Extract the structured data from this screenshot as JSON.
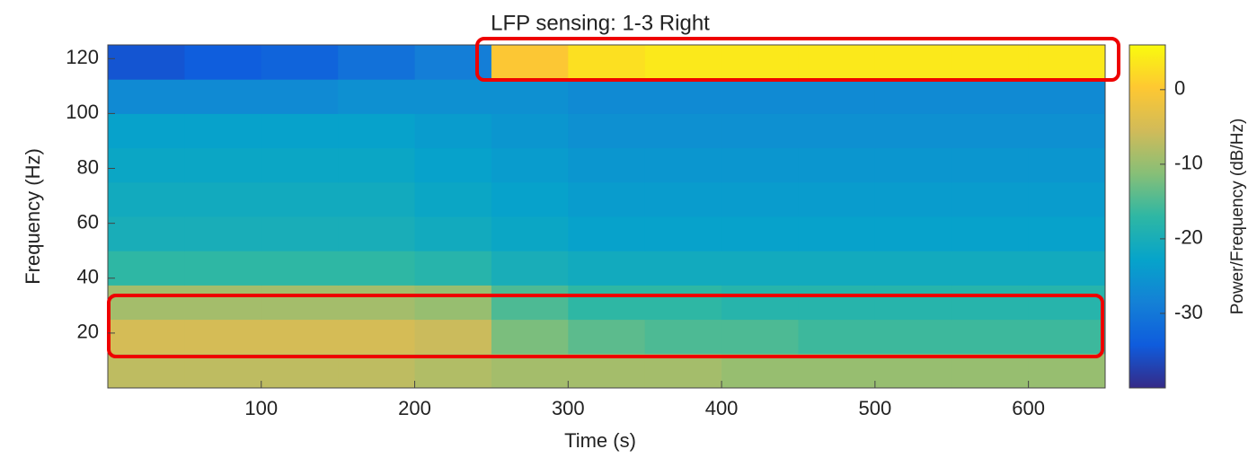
{
  "chart_data": {
    "type": "heatmap",
    "title": "LFP sensing: 1-3 Right",
    "x_label": "Time (s)",
    "y_label": "Frequency (Hz)",
    "colorbar_label": "Power/Frequency (dB/Hz)",
    "x": [
      25,
      75,
      125,
      175,
      225,
      275,
      325,
      375,
      425,
      475,
      525,
      575,
      625
    ],
    "y": [
      6.25,
      18.75,
      31.25,
      43.75,
      56.25,
      68.75,
      81.25,
      93.75,
      106.25,
      118.75
    ],
    "values": [
      [
        -7,
        -7,
        -7,
        -7,
        -8,
        -9,
        -9,
        -9,
        -10,
        -10,
        -10,
        -10,
        -10
      ],
      [
        -5,
        -5,
        -5,
        -5,
        -6,
        -12,
        -14,
        -15,
        -15,
        -16,
        -16,
        -16,
        -16
      ],
      [
        -9,
        -9,
        -9,
        -9,
        -10,
        -15,
        -17,
        -17,
        -18,
        -18,
        -18,
        -18,
        -18
      ],
      [
        -17,
        -17,
        -17,
        -17,
        -18,
        -20,
        -21,
        -21,
        -21,
        -21,
        -21,
        -21,
        -21
      ],
      [
        -20,
        -20,
        -20,
        -20,
        -21,
        -22,
        -23,
        -23,
        -23,
        -23,
        -23,
        -23,
        -23
      ],
      [
        -21,
        -21,
        -21,
        -21,
        -22,
        -23,
        -24,
        -24,
        -24,
        -24,
        -24,
        -24,
        -24
      ],
      [
        -22,
        -22,
        -22,
        -22,
        -23,
        -24,
        -25,
        -25,
        -25,
        -25,
        -25,
        -25,
        -25
      ],
      [
        -23,
        -23,
        -23,
        -23,
        -24,
        -25,
        -26,
        -26,
        -26,
        -26,
        -26,
        -26,
        -26
      ],
      [
        -27,
        -27,
        -27,
        -26,
        -26,
        -26,
        -27,
        -27,
        -27,
        -27,
        -27,
        -27,
        -27
      ],
      [
        -35,
        -34,
        -33,
        -31,
        -29,
        0,
        3,
        4,
        4,
        4,
        4,
        4,
        4
      ]
    ],
    "xlim": [
      0,
      650
    ],
    "xticks": [
      100,
      200,
      300,
      400,
      500,
      600
    ],
    "ylim": [
      0,
      125
    ],
    "yticks": [
      20,
      40,
      60,
      80,
      100,
      120
    ],
    "clim": [
      -40,
      6
    ],
    "cticks": [
      0,
      -10,
      -20,
      -30
    ],
    "colormap": [
      "#352a87",
      "#0f5cdd",
      "#1481d6",
      "#06a4ca",
      "#2eb7a4",
      "#87bf77",
      "#d1bb59",
      "#fec832",
      "#f9fb0e"
    ]
  }
}
